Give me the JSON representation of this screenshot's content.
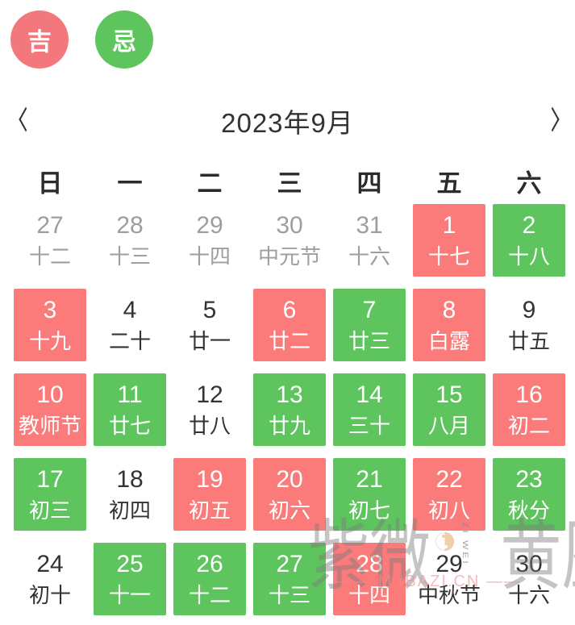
{
  "colors": {
    "legend_auspicious": "#f3787e",
    "legend_avoid": "#5ec45e",
    "cell_auspicious": "#fb7b7b",
    "cell_avoid": "#5ec45e"
  },
  "legend": {
    "auspicious": {
      "label": "吉"
    },
    "avoid": {
      "label": "忌"
    }
  },
  "header": {
    "title": "2023年9月"
  },
  "weekdays": [
    "日",
    "一",
    "二",
    "三",
    "四",
    "五",
    "六"
  ],
  "calendar": {
    "days": [
      {
        "day": "27",
        "lunar": "十二",
        "type": "prev"
      },
      {
        "day": "28",
        "lunar": "十三",
        "type": "prev"
      },
      {
        "day": "29",
        "lunar": "十四",
        "type": "prev"
      },
      {
        "day": "30",
        "lunar": "中元节",
        "type": "prev"
      },
      {
        "day": "31",
        "lunar": "十六",
        "type": "prev"
      },
      {
        "day": "1",
        "lunar": "十七",
        "type": "auspicious"
      },
      {
        "day": "2",
        "lunar": "十八",
        "type": "avoid"
      },
      {
        "day": "3",
        "lunar": "十九",
        "type": "auspicious"
      },
      {
        "day": "4",
        "lunar": "二十",
        "type": "normal"
      },
      {
        "day": "5",
        "lunar": "廿一",
        "type": "normal"
      },
      {
        "day": "6",
        "lunar": "廿二",
        "type": "auspicious"
      },
      {
        "day": "7",
        "lunar": "廿三",
        "type": "avoid"
      },
      {
        "day": "8",
        "lunar": "白露",
        "type": "auspicious"
      },
      {
        "day": "9",
        "lunar": "廿五",
        "type": "normal"
      },
      {
        "day": "10",
        "lunar": "教师节",
        "type": "auspicious"
      },
      {
        "day": "11",
        "lunar": "廿七",
        "type": "avoid"
      },
      {
        "day": "12",
        "lunar": "廿八",
        "type": "normal"
      },
      {
        "day": "13",
        "lunar": "廿九",
        "type": "avoid"
      },
      {
        "day": "14",
        "lunar": "三十",
        "type": "avoid"
      },
      {
        "day": "15",
        "lunar": "八月",
        "type": "avoid"
      },
      {
        "day": "16",
        "lunar": "初二",
        "type": "auspicious"
      },
      {
        "day": "17",
        "lunar": "初三",
        "type": "avoid"
      },
      {
        "day": "18",
        "lunar": "初四",
        "type": "normal"
      },
      {
        "day": "19",
        "lunar": "初五",
        "type": "auspicious"
      },
      {
        "day": "20",
        "lunar": "初六",
        "type": "auspicious"
      },
      {
        "day": "21",
        "lunar": "初七",
        "type": "avoid"
      },
      {
        "day": "22",
        "lunar": "初八",
        "type": "auspicious"
      },
      {
        "day": "23",
        "lunar": "秋分",
        "type": "avoid"
      },
      {
        "day": "24",
        "lunar": "初十",
        "type": "normal"
      },
      {
        "day": "25",
        "lunar": "十一",
        "type": "avoid"
      },
      {
        "day": "26",
        "lunar": "十二",
        "type": "avoid"
      },
      {
        "day": "27",
        "lunar": "十三",
        "type": "avoid"
      },
      {
        "day": "28",
        "lunar": "十四",
        "type": "auspicious"
      },
      {
        "day": "29",
        "lunar": "中秋节",
        "type": "normal"
      },
      {
        "day": "30",
        "lunar": "十六",
        "type": "normal"
      }
    ]
  },
  "watermark": {
    "part1": "紫微",
    "vertical": "ZI WEI",
    "part2": "黄歷",
    "site": "—— M.IBAZI.CN ——"
  }
}
